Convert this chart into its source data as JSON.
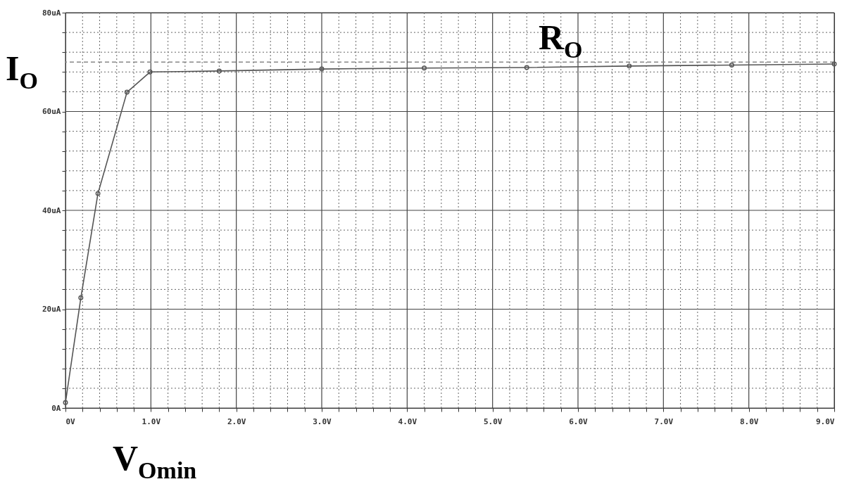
{
  "chart_data": {
    "type": "line",
    "xlabel": "V$_{Omin}$",
    "ylabel": "I$_{O}$",
    "annotations": [
      "R$_{O}$"
    ],
    "x": [
      0,
      0.18,
      0.38,
      0.72,
      0.99,
      1.8,
      3.0,
      4.2,
      5.4,
      6.6,
      7.8,
      9.0
    ],
    "series": [
      {
        "color": "#555555",
        "values": [
          1.1,
          22.3,
          43.4,
          63.9,
          68.0,
          68.2,
          68.6,
          68.8,
          68.9,
          69.2,
          69.4,
          69.6
        ]
      }
    ],
    "xlim": [
      0,
      9
    ],
    "ylim": [
      0,
      80
    ],
    "xticks": [
      {
        "value": 0,
        "label": "0V"
      },
      {
        "value": 0.2,
        "label": null
      },
      {
        "value": 0.4,
        "label": null
      },
      {
        "value": 0.6,
        "label": null
      },
      {
        "value": 0.8,
        "label": null
      },
      {
        "value": 1,
        "label": "1.0V"
      },
      {
        "value": 1.2,
        "label": null
      },
      {
        "value": 1.4,
        "label": null
      },
      {
        "value": 1.6,
        "label": null
      },
      {
        "value": 1.8,
        "label": null
      },
      {
        "value": 2,
        "label": "2.0V"
      },
      {
        "value": 2.2,
        "label": null
      },
      {
        "value": 2.4,
        "label": null
      },
      {
        "value": 2.6,
        "label": null
      },
      {
        "value": 2.8,
        "label": null
      },
      {
        "value": 3,
        "label": "3.0V"
      },
      {
        "value": 3.2,
        "label": null
      },
      {
        "value": 3.4,
        "label": null
      },
      {
        "value": 3.6,
        "label": null
      },
      {
        "value": 3.8,
        "label": null
      },
      {
        "value": 4,
        "label": "4.0V"
      },
      {
        "value": 4.2,
        "label": null
      },
      {
        "value": 4.4,
        "label": null
      },
      {
        "value": 4.6,
        "label": null
      },
      {
        "value": 4.8,
        "label": null
      },
      {
        "value": 5,
        "label": "5.0V"
      },
      {
        "value": 5.2,
        "label": null
      },
      {
        "value": 5.4,
        "label": null
      },
      {
        "value": 5.6,
        "label": null
      },
      {
        "value": 5.8,
        "label": null
      },
      {
        "value": 6,
        "label": "6.0V"
      },
      {
        "value": 6.2,
        "label": null
      },
      {
        "value": 6.4,
        "label": null
      },
      {
        "value": 6.6,
        "label": null
      },
      {
        "value": 6.8,
        "label": null
      },
      {
        "value": 7,
        "label": "7.0V"
      },
      {
        "value": 7.2,
        "label": null
      },
      {
        "value": 7.4,
        "label": null
      },
      {
        "value": 7.6,
        "label": null
      },
      {
        "value": 7.8,
        "label": null
      },
      {
        "value": 8,
        "label": "8.0V"
      },
      {
        "value": 8.2,
        "label": null
      },
      {
        "value": 8.4,
        "label": null
      },
      {
        "value": 8.6,
        "label": null
      },
      {
        "value": 8.8,
        "label": null
      },
      {
        "value": 9,
        "label": "9.0V"
      }
    ],
    "yticks": [
      {
        "value": 0,
        "label": "0A"
      },
      {
        "value": 4,
        "label": null
      },
      {
        "value": 8,
        "label": null
      },
      {
        "value": 12,
        "label": null
      },
      {
        "value": 16,
        "label": null
      },
      {
        "value": 20,
        "label": "20uA"
      },
      {
        "value": 24,
        "label": null
      },
      {
        "value": 28,
        "label": null
      },
      {
        "value": 32,
        "label": null
      },
      {
        "value": 36,
        "label": null
      },
      {
        "value": 40,
        "label": "40uA"
      },
      {
        "value": 44,
        "label": null
      },
      {
        "value": 48,
        "label": null
      },
      {
        "value": 52,
        "label": null
      },
      {
        "value": 56,
        "label": null
      },
      {
        "value": 60,
        "label": "60uA"
      },
      {
        "value": 64,
        "label": null
      },
      {
        "value": 68,
        "label": null
      },
      {
        "value": 72,
        "label": null
      },
      {
        "value": 76,
        "label": null
      },
      {
        "value": 80,
        "label": "80uA"
      }
    ],
    "grid": true,
    "marker": "circle",
    "ref_lines": [
      {
        "axis": "y",
        "value": 70,
        "color": "#888888",
        "line_style": "dashed"
      }
    ]
  }
}
